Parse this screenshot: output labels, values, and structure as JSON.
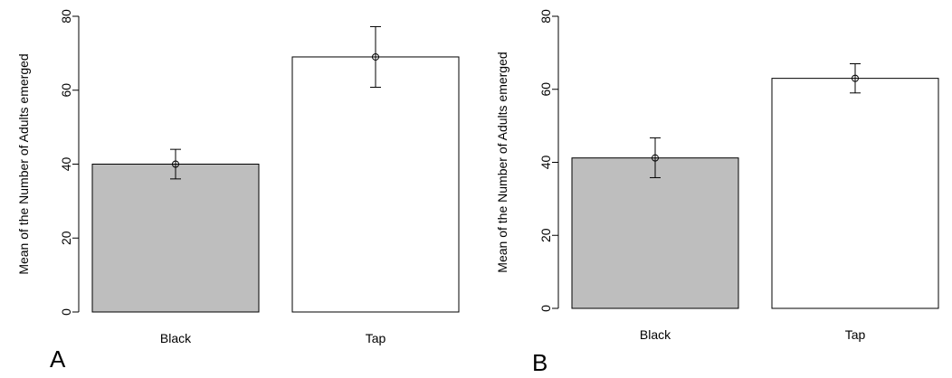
{
  "chart_data": [
    {
      "type": "bar",
      "panel_label": "A",
      "categories": [
        "Black",
        "Tap"
      ],
      "values": [
        40,
        69
      ],
      "error_low": [
        36,
        60.8
      ],
      "error_high": [
        44,
        77.2
      ],
      "bar_colors": [
        "#bebebe",
        "#ffffff"
      ],
      "ylabel": "Mean of the Number of Adults emerged",
      "xlabel": "",
      "ylim": [
        0,
        80
      ],
      "yticks": [
        "0",
        "20",
        "40",
        "60",
        "80"
      ],
      "grid": false
    },
    {
      "type": "bar",
      "panel_label": "B",
      "categories": [
        "Black",
        "Tap"
      ],
      "values": [
        41.2,
        63
      ],
      "error_low": [
        35.8,
        59
      ],
      "error_high": [
        46.7,
        67
      ],
      "bar_colors": [
        "#bebebe",
        "#ffffff"
      ],
      "ylabel": "Mean of the Number of Adults emerged",
      "xlabel": "",
      "ylim": [
        0,
        80
      ],
      "yticks": [
        "0",
        "20",
        "40",
        "60",
        "80"
      ],
      "grid": false
    }
  ]
}
